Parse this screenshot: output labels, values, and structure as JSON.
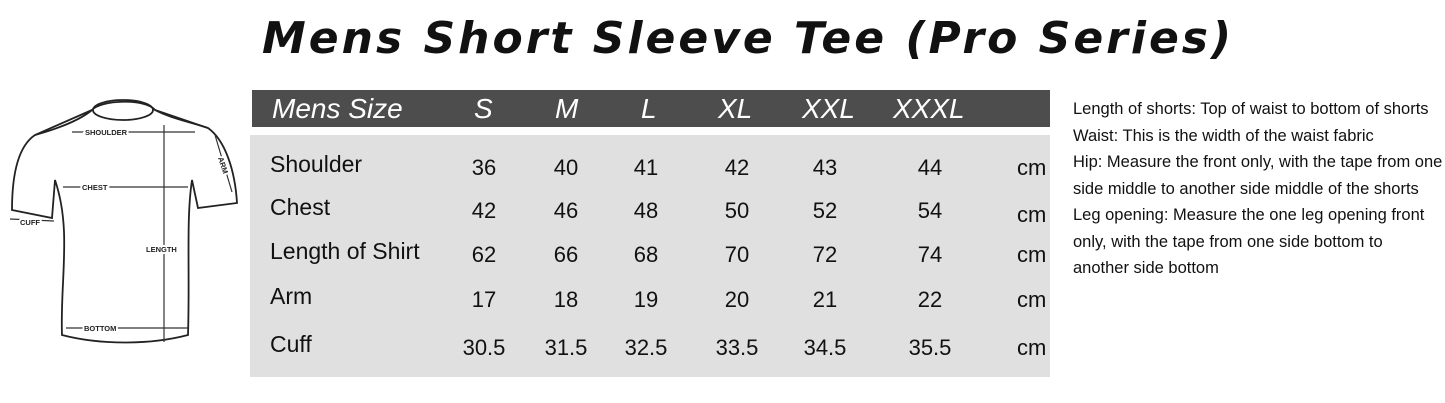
{
  "title": "Mens Short Sleeve Tee (Pro Series)",
  "diagram": {
    "labels": {
      "shoulder": "SHOULDER",
      "chest": "CHEST",
      "cuff": "CUFF",
      "arm": "ARM",
      "length": "LENGTH",
      "bottom": "BOTTOM"
    }
  },
  "table": {
    "header": [
      "Mens Size",
      "S",
      "M",
      "L",
      "XL",
      "XXL",
      "XXXL"
    ],
    "rows": [
      {
        "label": "Shoulder",
        "values": [
          "36",
          "40",
          "41",
          "42",
          "43",
          "44"
        ],
        "unit": "cm"
      },
      {
        "label": "Chest",
        "values": [
          "42",
          "46",
          "48",
          "50",
          "52",
          "54"
        ],
        "unit": "cm"
      },
      {
        "label": "Length of Shirt",
        "values": [
          "62",
          "66",
          "68",
          "70",
          "72",
          "74"
        ],
        "unit": "cm"
      },
      {
        "label": "Arm",
        "values": [
          "17",
          "18",
          "19",
          "20",
          "21",
          "22"
        ],
        "unit": "cm"
      },
      {
        "label": "Cuff",
        "values": [
          "30.5",
          "31.5",
          "32.5",
          "33.5",
          "34.5",
          "35.5"
        ],
        "unit": "cm"
      }
    ]
  },
  "notes": [
    "Length of shorts: Top of waist to bottom of shorts",
    "Waist: This is the width of the waist fabric",
    "Hip: Measure the front only, with the tape from one side middle to another side middle of the shorts",
    "Leg opening: Measure the one leg opening front only, with the tape from one side bottom to another side bottom"
  ]
}
